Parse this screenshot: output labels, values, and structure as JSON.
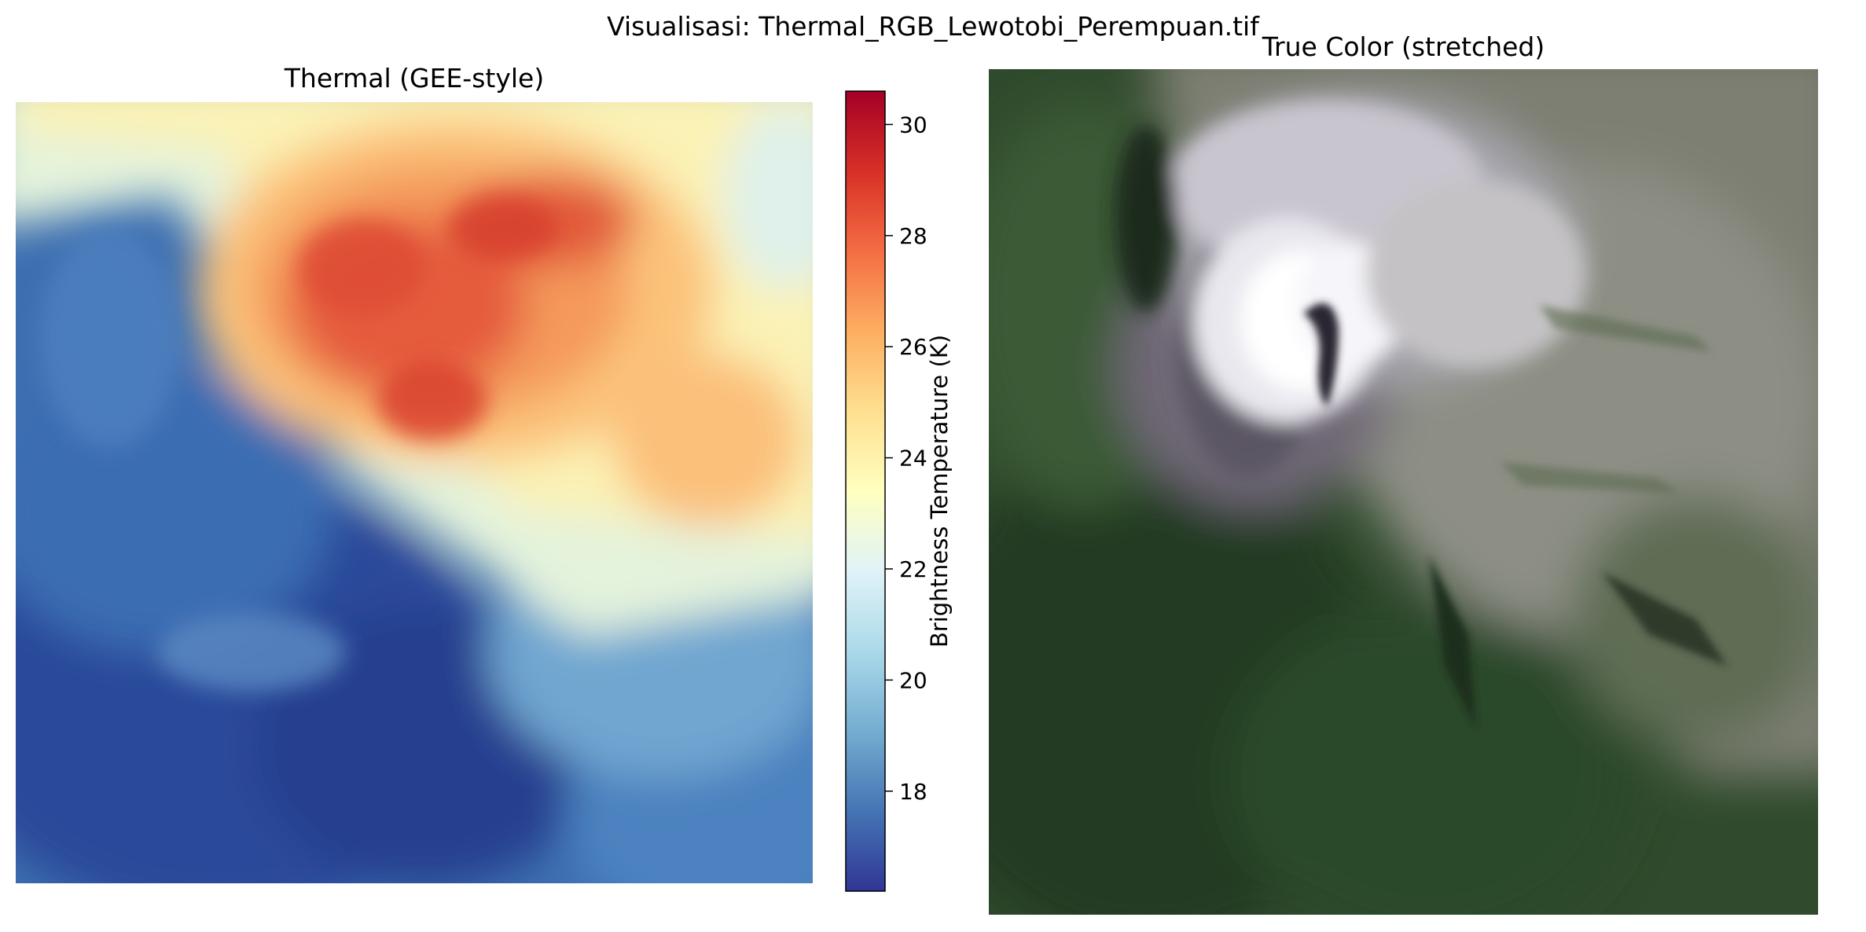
{
  "figure": {
    "suptitle": "Visualisasi: Thermal_RGB_Lewotobi_Perempuan.tif"
  },
  "thermal_panel": {
    "title": "Thermal (GEE-style)",
    "colormap": "RdYlBu_r"
  },
  "true_color_panel": {
    "title": "True Color (stretched)"
  },
  "colorbar": {
    "label": "Brightness Temperature (K)",
    "vmin": 16.2,
    "vmax": 30.6,
    "ticks": [
      18,
      20,
      22,
      24,
      26,
      28,
      30
    ],
    "tick_labels": [
      "18",
      "20",
      "22",
      "24",
      "26",
      "28",
      "30"
    ],
    "colors": [
      "#313695",
      "#4575b4",
      "#74add1",
      "#abd9e9",
      "#e0f3f8",
      "#ffffbf",
      "#fee090",
      "#fdae61",
      "#f46d43",
      "#d73027",
      "#a50026"
    ]
  }
}
